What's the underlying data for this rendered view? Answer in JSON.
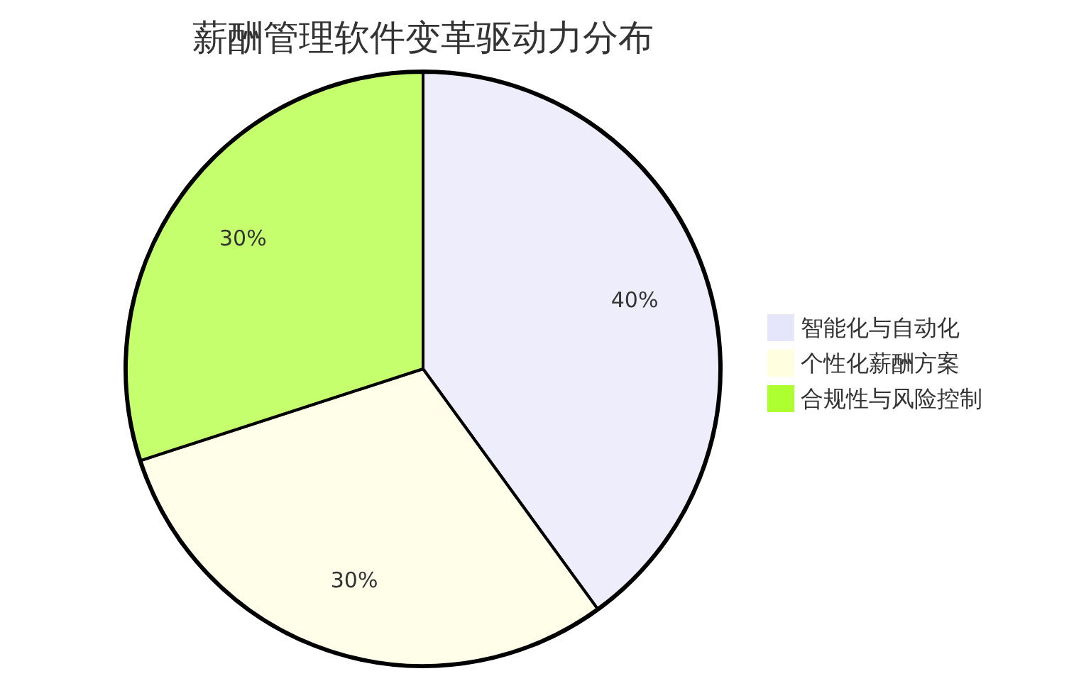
{
  "chart_data": {
    "type": "pie",
    "title": "薪酬管理软件变革驱动力分布",
    "categories": [
      "智能化与自动化",
      "个性化薪酬方案",
      "合规性与风险控制"
    ],
    "values": [
      40,
      30,
      30
    ],
    "colors": [
      "#e6e6fa",
      "#ffffe0",
      "#adff2f"
    ],
    "value_labels": [
      "40%",
      "30%",
      "30%"
    ],
    "legend": "right"
  }
}
